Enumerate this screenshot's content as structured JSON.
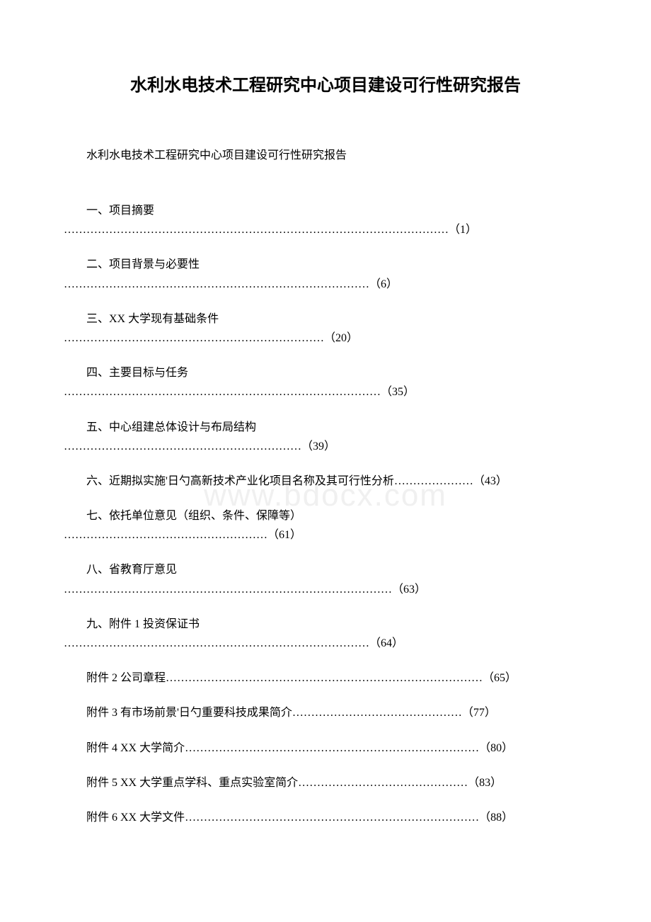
{
  "title": "水利水电技术工程研究中心项目建设可行性研究报告",
  "subtitle": "水利水电技术工程研究中心项目建设可行性研究报告",
  "watermark": "www.bdocx.com",
  "toc": [
    {
      "label": "一、项目摘要",
      "dots": "…………………………………………………………………………………………（1）"
    },
    {
      "label": "二、项目背景与必要性",
      "dots": "………………………………………………………………………（6）"
    },
    {
      "label": "三、XX 大学现有基础条件",
      "dots": "……………………………………………………………（20）"
    },
    {
      "label": "四、主要目标与任务",
      "dots": "…………………………………………………………………………（35）"
    },
    {
      "label": "五、中心组建总体设计与布局结构",
      "dots": "………………………………………………………（39）"
    },
    {
      "label": "六、近期拟实施'日勺高新技术产业化项目名称及其可行性分析…………………（43）",
      "dots": ""
    },
    {
      "label": "七、依托单位意见（组织、条件、保障等）",
      "dots": "………………………………………………（61）"
    },
    {
      "label": "八、省教育厅意见",
      "dots": "……………………………………………………………………………（63）"
    },
    {
      "label": "九、附件 1 投资保证书",
      "dots": "………………………………………………………………………（64）"
    },
    {
      "label": "附件 2 公司章程…………………………………………………………………………（65）",
      "dots": ""
    },
    {
      "label": "附件 3 有市场前景'日勺重要科技成果简介………………………………………（77）",
      "dots": ""
    },
    {
      "label": "附件 4 XX 大学简介……………………………………………………………………（80）",
      "dots": ""
    },
    {
      "label": "附件 5 XX 大学重点学科、重点实验室简介………………………………………（83）",
      "dots": ""
    },
    {
      "label": "附件 6 XX 大学文件……………………………………………………………………（88）",
      "dots": ""
    }
  ]
}
